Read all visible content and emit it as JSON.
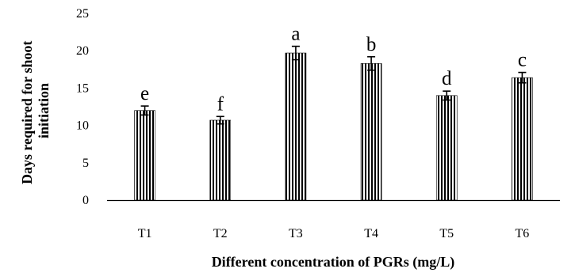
{
  "chart_data": {
    "type": "bar",
    "title": "",
    "xlabel": "Different concentration of PGRs (mg/L)",
    "ylabel_lines": [
      "Days required for shoot",
      "initiation"
    ],
    "categories": [
      "T1",
      "T2",
      "T3",
      "T4",
      "T5",
      "T6"
    ],
    "values": [
      12.0,
      10.7,
      19.7,
      18.3,
      14.0,
      16.4
    ],
    "errors": [
      0.6,
      0.5,
      0.9,
      0.9,
      0.6,
      0.7
    ],
    "significance_letters": [
      "e",
      "f",
      "a",
      "b",
      "d",
      "c"
    ],
    "ylim": [
      0,
      25
    ],
    "yticks": [
      0,
      5,
      10,
      15,
      20,
      25
    ],
    "grid": false,
    "legend": "none",
    "bar_fill": "vertical stripes",
    "colors": {
      "bar_stripe": "#000000",
      "bar_background": "#ffffff",
      "axis": "#000000"
    }
  }
}
